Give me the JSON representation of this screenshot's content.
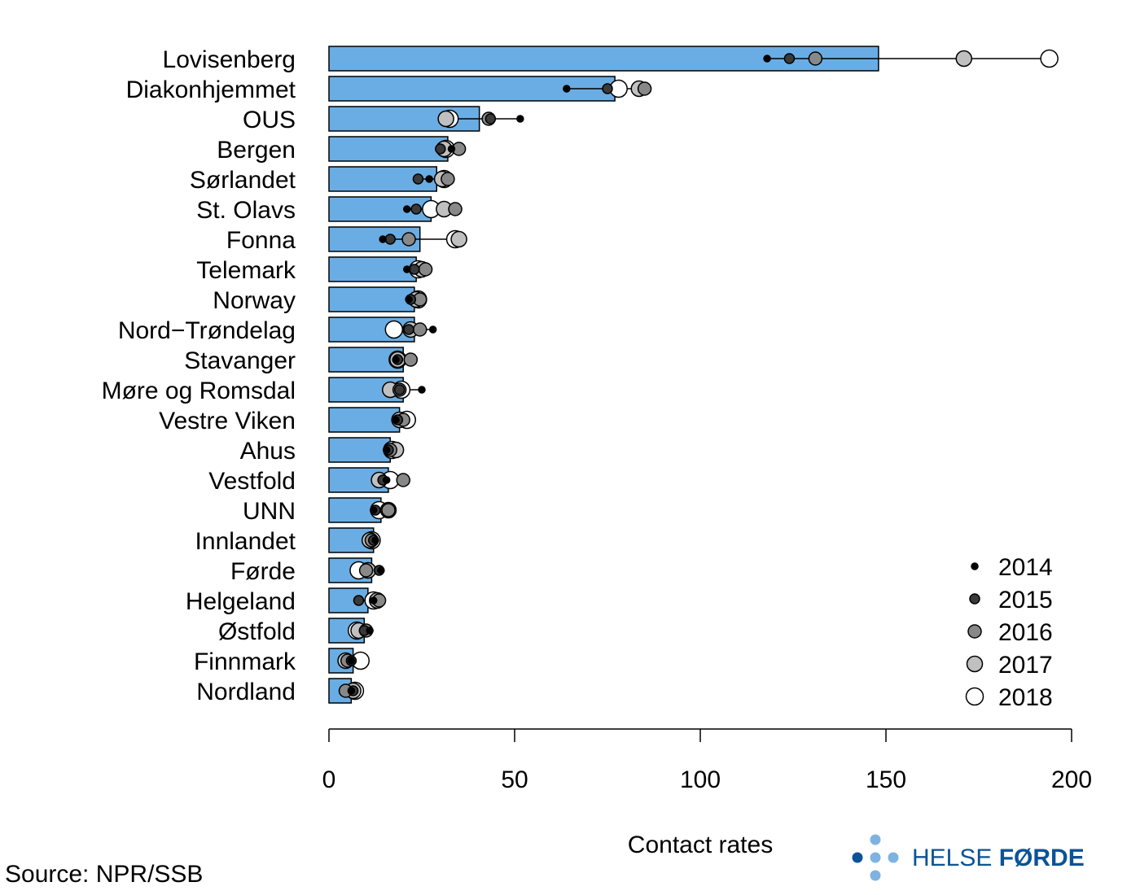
{
  "chart_data": {
    "type": "bar",
    "xlabel": "Contact rates",
    "xlim": [
      0,
      200
    ],
    "x_ticks": [
      0,
      50,
      100,
      150,
      200
    ],
    "bar_color": "#6aade4",
    "categories": [
      "Lovisenberg",
      "Diakonhjemmet",
      "OUS",
      "Bergen",
      "Sørlandet",
      "St. Olavs",
      "Fonna",
      "Telemark",
      "Norway",
      "Nord−Trøndelag",
      "Stavanger",
      "Møre og Romsdal",
      "Vestre Viken",
      "Ahus",
      "Vestfold",
      "UNN",
      "Innlandet",
      "Førde",
      "Helgeland",
      "Østfold",
      "Finnmark",
      "Nordland"
    ],
    "values": [
      148,
      77,
      40.5,
      32,
      29,
      27.5,
      24.5,
      23.5,
      23,
      23,
      20,
      20,
      19,
      16.5,
      16,
      14,
      12,
      11.5,
      10.5,
      9.5,
      6.5,
      6
    ],
    "years": [
      "2014",
      "2015",
      "2016",
      "2017",
      "2018"
    ],
    "year_fills": [
      "#000000",
      "#3a3a3a",
      "#888888",
      "#c0c0c0",
      "#ffffff"
    ],
    "series": [
      {
        "name": "2014",
        "values": [
          118,
          64,
          51.5,
          33,
          27,
          21,
          14.5,
          21,
          21.5,
          28,
          18,
          25,
          18,
          15.5,
          15.5,
          12,
          12.5,
          14,
          12,
          11,
          6,
          6
        ]
      },
      {
        "name": "2015",
        "values": [
          124,
          75,
          43.5,
          30,
          24,
          23.5,
          16.5,
          23,
          22,
          21.5,
          18.5,
          19,
          18.5,
          16,
          14.5,
          12.5,
          12,
          13.5,
          8,
          9.5,
          6,
          6.5
        ]
      },
      {
        "name": "2016",
        "values": [
          131,
          85,
          43,
          35,
          32,
          34,
          21.5,
          26,
          24.5,
          24.5,
          22,
          19,
          20,
          16.5,
          20,
          16,
          11.5,
          10,
          13.5,
          10,
          5,
          4.5
        ]
      },
      {
        "name": "2017",
        "values": [
          171,
          83.5,
          31.5,
          31,
          30.5,
          31,
          35,
          25,
          23.5,
          22,
          18.5,
          16.5,
          19,
          18,
          13.5,
          16,
          11,
          10.5,
          13,
          8,
          4.5,
          6.5
        ]
      },
      {
        "name": "2018",
        "values": [
          194,
          78,
          32.5,
          31.5,
          31,
          27.5,
          34,
          24,
          24,
          17.5,
          18.5,
          19.5,
          21,
          17,
          16.5,
          13.5,
          11.5,
          8,
          12,
          7.5,
          8.5,
          7
        ]
      }
    ]
  },
  "source": "Source: NPR/SSB",
  "logo": {
    "text_part1": "HELSE ",
    "text_part2": "FØRDE",
    "color_dark": "#0b5396",
    "color_light": "#7eb3e0"
  }
}
